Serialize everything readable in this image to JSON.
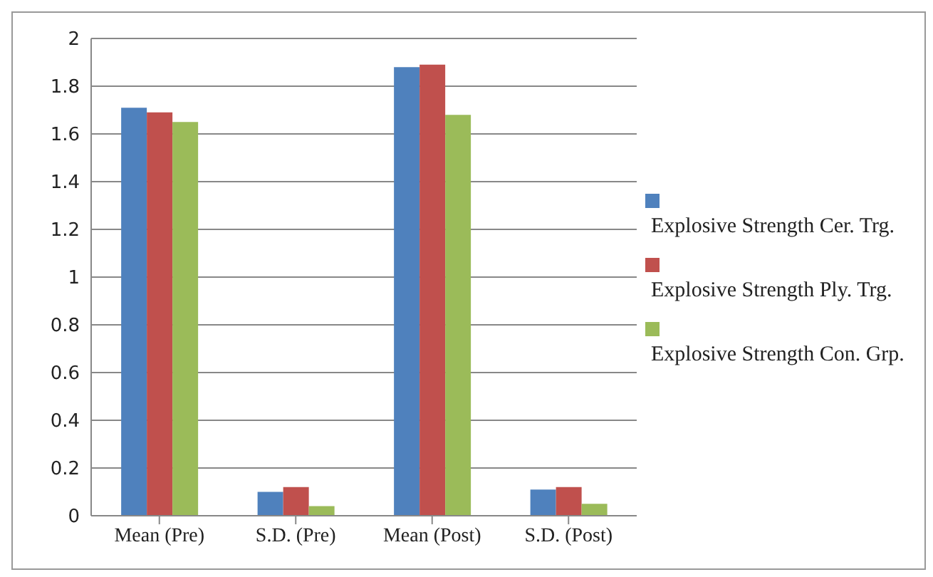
{
  "chart_data": {
    "type": "bar",
    "categories": [
      "Mean (Pre)",
      "S.D. (Pre)",
      "Mean (Post)",
      "S.D. (Post)"
    ],
    "series": [
      {
        "name": "Explosive Strength Cer. Trg.",
        "color": "#4f81bd",
        "values": [
          1.71,
          0.1,
          1.88,
          0.11
        ]
      },
      {
        "name": "Explosive Strength Ply. Trg.",
        "color": "#c0504d",
        "values": [
          1.69,
          0.12,
          1.89,
          0.12
        ]
      },
      {
        "name": "Explosive Strength Con. Grp.",
        "color": "#9bbb59",
        "values": [
          1.65,
          0.04,
          1.68,
          0.05
        ]
      }
    ],
    "ylim": [
      0,
      2
    ],
    "yticks": [
      0,
      0.2,
      0.4,
      0.6,
      0.8,
      1,
      1.2,
      1.4,
      1.6,
      1.8,
      2
    ],
    "grid": "y",
    "legend": "right"
  }
}
